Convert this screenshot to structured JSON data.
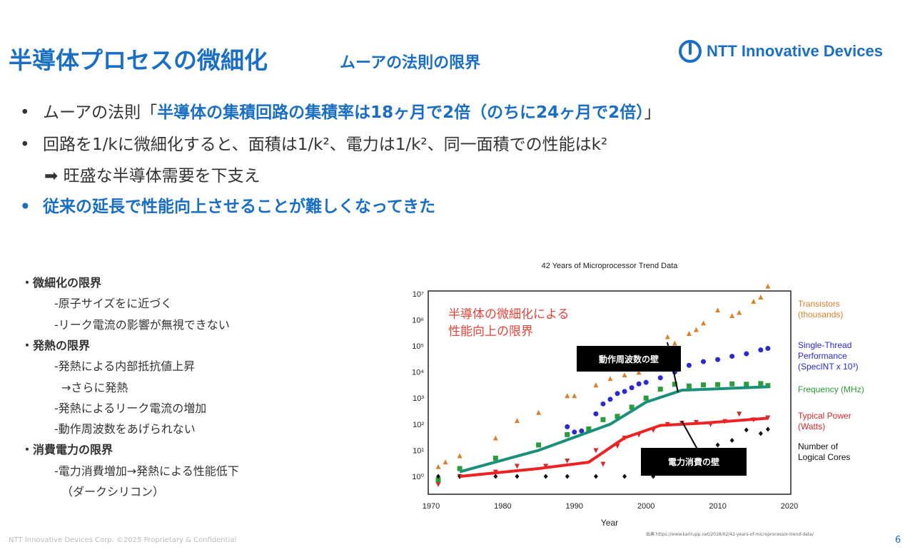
{
  "header": {
    "title": "半導体プロセスの微細化",
    "subtitle": "ムーアの法則の限界",
    "logo_text": "NTT Innovative Devices"
  },
  "bullets": [
    {
      "prefix": "ムーアの法則「",
      "emph": "半導体の集積回路の集積率は18ヶ月で2倍（のちに24ヶ月で2倍）",
      "suffix": "」"
    },
    {
      "text": "回路を1/kに微細化すると、面積は1/k²、電力は1/k²、同一面積での性能はk²"
    },
    {
      "text": "➡ 旺盛な半導体需要を下支え"
    },
    {
      "emph": "従来の延長で性能向上させることが難しくなってきた"
    }
  ],
  "bullet_symbol": "•",
  "side_list": [
    {
      "text": "・微細化の限界",
      "heading": true
    },
    {
      "text": "-原子サイズをに近づく"
    },
    {
      "text": "-リーク電流の影響が無視できない"
    },
    {
      "text": "・発熱の限界",
      "heading": true
    },
    {
      "text": "-発熱による内部抵抗値上昇"
    },
    {
      "text": "→さらに発熱",
      "indent": true
    },
    {
      "text": "-発熱によるリーク電流の増加"
    },
    {
      "text": "-動作周波数をあげられない"
    },
    {
      "text": "・消費電力の限界",
      "heading": true
    },
    {
      "text": "-電力消費増加→発熱による性能低下"
    },
    {
      "text": "（ダークシリコン）",
      "indent": true
    }
  ],
  "chart_data": {
    "type": "scatter",
    "title": "42 Years of Microprocessor Trend Data",
    "xlabel": "Year",
    "ylabel": "",
    "xlim": [
      1970,
      2020
    ],
    "ylim_log10": [
      -0.3,
      7.5
    ],
    "yscale": "log",
    "xticks": [
      "1970",
      "1980",
      "1990",
      "2000",
      "2010",
      "2020"
    ],
    "yticks": [
      "10⁰",
      "10¹",
      "10²",
      "10³",
      "10⁴",
      "10⁵",
      "10⁶",
      "10⁷"
    ],
    "annotation_main": [
      "半導体の微細化による",
      "性能向上の限界"
    ],
    "callouts": [
      "動作周波数の壁",
      "電力消費の壁"
    ],
    "series": [
      {
        "name": "Transistors (thousands)",
        "label_lines": [
          "Transistors",
          "(thousands)"
        ],
        "color": "#d9822b",
        "marker": "triangle",
        "points": [
          [
            1971,
            2.3
          ],
          [
            1972,
            3.5
          ],
          [
            1974,
            6
          ],
          [
            1979,
            29
          ],
          [
            1982,
            134
          ],
          [
            1985,
            275
          ],
          [
            1989,
            1200
          ],
          [
            1990,
            1200
          ],
          [
            1993,
            3100
          ],
          [
            1995,
            5500
          ],
          [
            1997,
            7500
          ],
          [
            1999,
            9500
          ],
          [
            2000,
            42000
          ],
          [
            2003,
            220000
          ],
          [
            2004,
            125000
          ],
          [
            2006,
            291000
          ],
          [
            2007,
            410000
          ],
          [
            2008,
            731000
          ],
          [
            2010,
            2300000
          ],
          [
            2012,
            1400000
          ],
          [
            2013,
            1860000
          ],
          [
            2015,
            5000000
          ],
          [
            2016,
            7200000
          ],
          [
            2017,
            19000000
          ]
        ]
      },
      {
        "name": "Single-Thread Performance (SpecINT x 10³)",
        "label_lines": [
          "Single-Thread",
          "Performance",
          "(SpecINT x 10³)"
        ],
        "color": "#2a2acf",
        "marker": "circle",
        "points": [
          [
            1989,
            80
          ],
          [
            1990,
            50
          ],
          [
            1991,
            55
          ],
          [
            1993,
            250
          ],
          [
            1994,
            600
          ],
          [
            1995,
            900
          ],
          [
            1996,
            1500
          ],
          [
            1997,
            1800
          ],
          [
            1998,
            2500
          ],
          [
            1999,
            3500
          ],
          [
            2000,
            4000
          ],
          [
            2002,
            6000
          ],
          [
            2004,
            10000
          ],
          [
            2006,
            18000
          ],
          [
            2008,
            25000
          ],
          [
            2010,
            30000
          ],
          [
            2012,
            40000
          ],
          [
            2014,
            50000
          ],
          [
            2016,
            70000
          ],
          [
            2017,
            80000
          ]
        ]
      },
      {
        "name": "Frequency (MHz)",
        "label_lines": [
          "Frequency (MHz)"
        ],
        "color": "#2a9d3a",
        "marker": "square",
        "points": [
          [
            1971,
            0.74
          ],
          [
            1974,
            2
          ],
          [
            1979,
            5
          ],
          [
            1985,
            16
          ],
          [
            1989,
            40
          ],
          [
            1992,
            66
          ],
          [
            1994,
            150
          ],
          [
            1996,
            200
          ],
          [
            1998,
            450
          ],
          [
            2000,
            1000
          ],
          [
            2002,
            2200
          ],
          [
            2004,
            3400
          ],
          [
            2006,
            2900
          ],
          [
            2008,
            3200
          ],
          [
            2010,
            3300
          ],
          [
            2012,
            3500
          ],
          [
            2014,
            3400
          ],
          [
            2016,
            3600
          ],
          [
            2017,
            3000
          ]
        ]
      },
      {
        "name": "Typical Power (Watts)",
        "label_lines": [
          "Typical Power",
          "(Watts)"
        ],
        "color": "#d42a2a",
        "marker": "triangle-down",
        "points": [
          [
            1971,
            0.5
          ],
          [
            1974,
            1
          ],
          [
            1979,
            1.5
          ],
          [
            1982,
            2.5
          ],
          [
            1986,
            2.5
          ],
          [
            1989,
            4
          ],
          [
            1993,
            10
          ],
          [
            1994,
            3
          ],
          [
            1996,
            15
          ],
          [
            1997,
            30
          ],
          [
            1999,
            40
          ],
          [
            2001,
            60
          ],
          [
            2003,
            100
          ],
          [
            2005,
            110
          ],
          [
            2007,
            120
          ],
          [
            2009,
            100
          ],
          [
            2011,
            130
          ],
          [
            2013,
            250
          ],
          [
            2015,
            150
          ],
          [
            2017,
            180
          ]
        ]
      },
      {
        "name": "Number of Logical Cores",
        "label_lines": [
          "Number of",
          "Logical Cores"
        ],
        "color": "#111111",
        "marker": "diamond",
        "points": [
          [
            1971,
            1
          ],
          [
            1974,
            1
          ],
          [
            1979,
            1
          ],
          [
            1982,
            1
          ],
          [
            1986,
            1
          ],
          [
            1989,
            1
          ],
          [
            1993,
            1
          ],
          [
            1997,
            1
          ],
          [
            2001,
            1
          ],
          [
            2005,
            2
          ],
          [
            2008,
            4
          ],
          [
            2010,
            16
          ],
          [
            2012,
            24
          ],
          [
            2014,
            60
          ],
          [
            2016,
            44
          ],
          [
            2017,
            64
          ]
        ]
      }
    ],
    "trend_lines": [
      {
        "name": "Frequency trend",
        "color": "#1a8f7a",
        "points": [
          [
            1974,
            1.5
          ],
          [
            1985,
            10
          ],
          [
            1995,
            100
          ],
          [
            2000,
            700
          ],
          [
            2005,
            2000
          ],
          [
            2017,
            2700
          ]
        ]
      },
      {
        "name": "Power trend",
        "color": "#ee2222",
        "points": [
          [
            1974,
            1
          ],
          [
            1985,
            2
          ],
          [
            1992,
            3.5
          ],
          [
            1997,
            30
          ],
          [
            2002,
            90
          ],
          [
            2008,
            110
          ],
          [
            2017,
            170
          ]
        ]
      }
    ]
  },
  "source": "出典 https://www.karlrupp.net/2018/02/42-years-of-microprocessor-trend-data/",
  "footer": "NTT Innovative Devices Corp. ©2025  Proprietary & Confidential",
  "page_number": "6"
}
